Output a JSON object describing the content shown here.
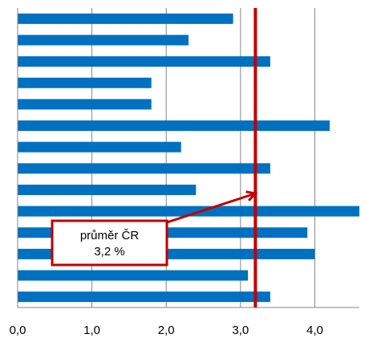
{
  "chart_data": {
    "type": "bar",
    "orientation": "horizontal",
    "values": [
      2.9,
      2.3,
      3.4,
      1.8,
      1.8,
      4.2,
      2.2,
      3.4,
      2.4,
      4.6,
      3.9,
      4.0,
      3.1,
      3.4
    ],
    "x_ticks": [
      "0,0",
      "1,0",
      "2,0",
      "3,0",
      "4,0"
    ],
    "x_tick_values": [
      0,
      1,
      2,
      3,
      4
    ],
    "xlim": [
      0,
      4.6
    ],
    "grid": "vertical",
    "bar_color": "#0070C0",
    "reference_line": {
      "value": 3.2,
      "color": "#C00000",
      "label_lines": [
        "průměr ČR",
        "3,2 %"
      ]
    }
  }
}
